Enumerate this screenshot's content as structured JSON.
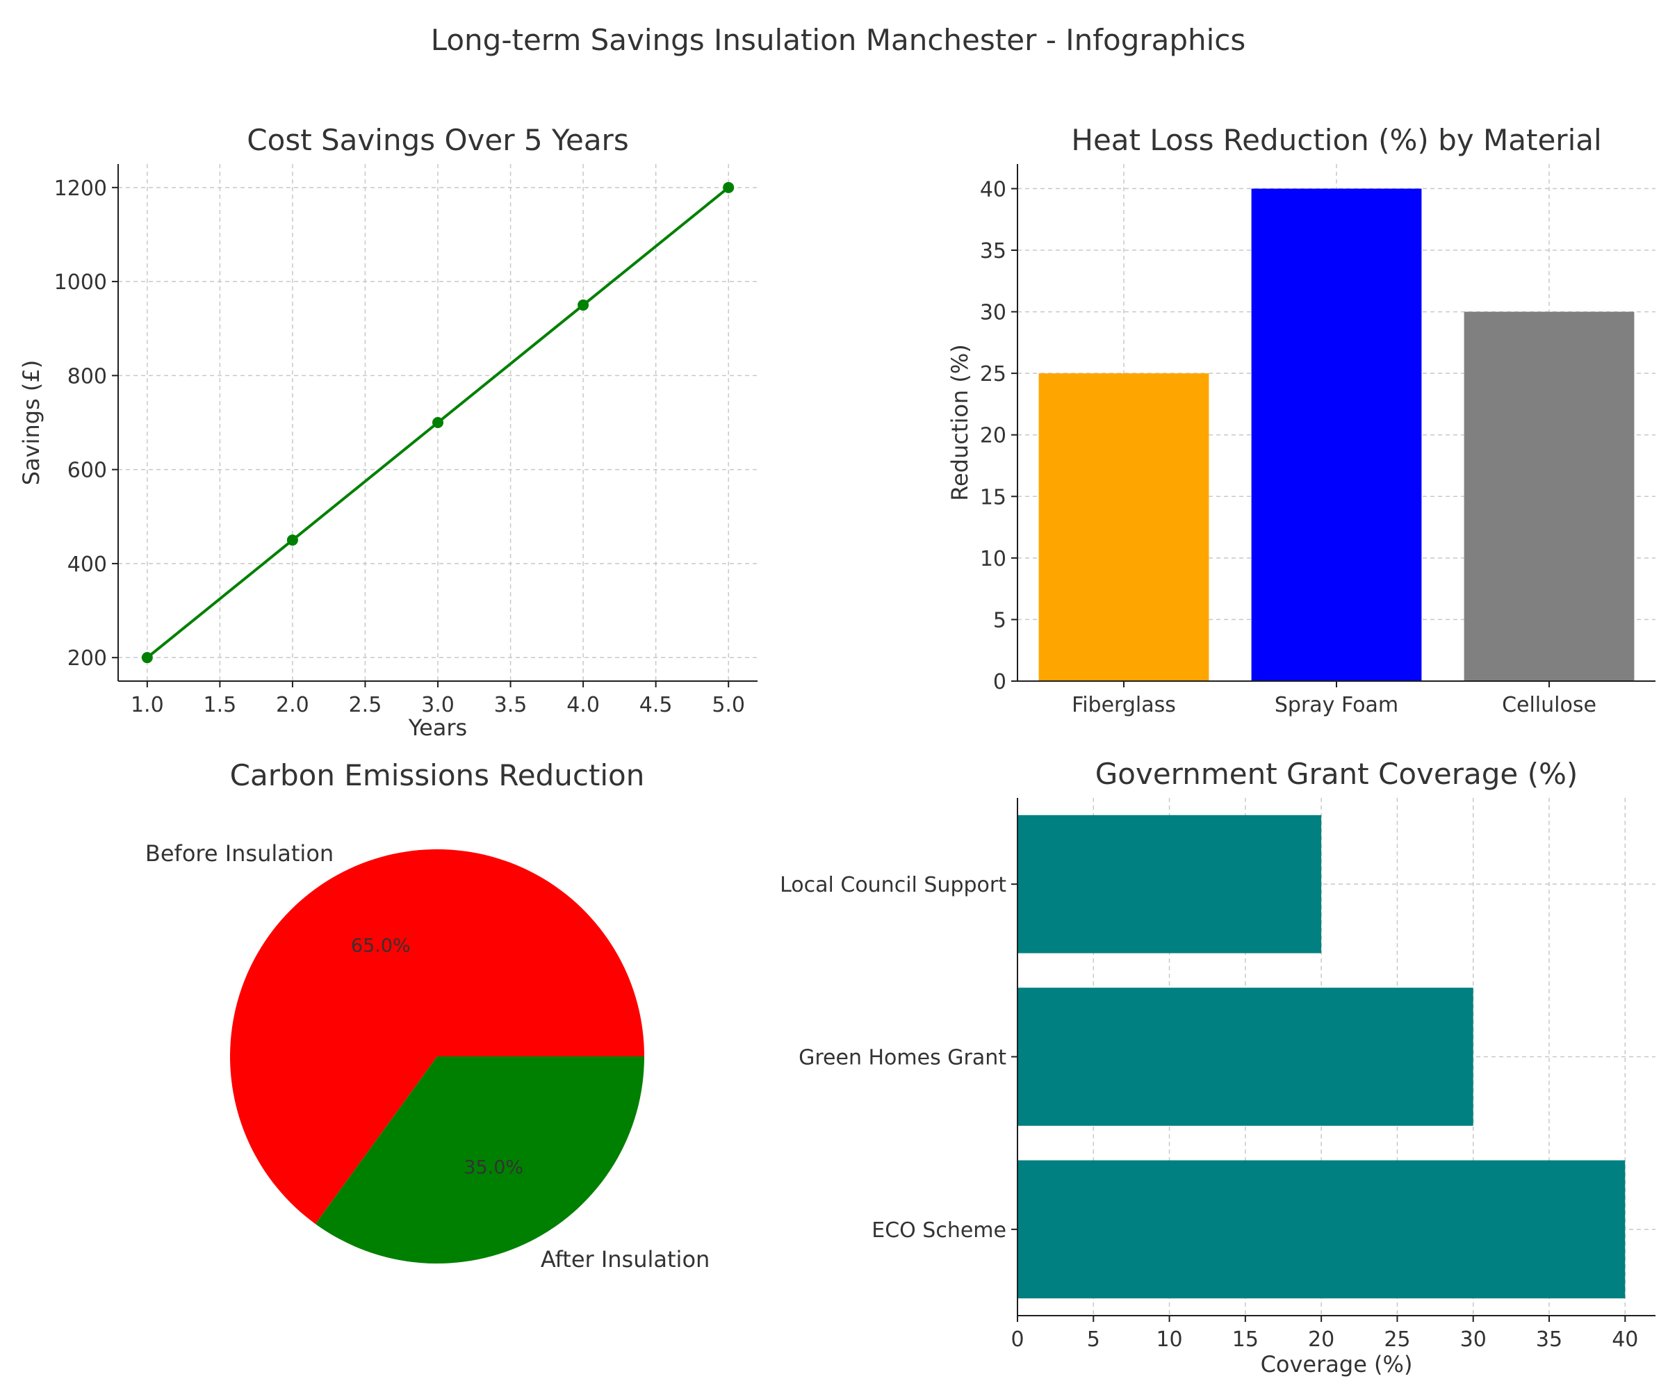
{
  "suptitle": "Long-term Savings Insulation Manchester - Infographics",
  "chart_data": [
    {
      "type": "line",
      "title": "Cost Savings Over 5 Years",
      "xlabel": "Years",
      "ylabel": "Savings (£)",
      "x": [
        1,
        2,
        3,
        4,
        5
      ],
      "series": [
        {
          "values": [
            200,
            450,
            700,
            950,
            1200
          ],
          "color": "#008000"
        }
      ],
      "xlim": [
        0.8,
        5.2
      ],
      "ylim": [
        150,
        1250
      ],
      "xticks": [
        1.0,
        1.5,
        2.0,
        2.5,
        3.0,
        3.5,
        4.0,
        4.5,
        5.0
      ],
      "xtick_labels": [
        "1.0",
        "1.5",
        "2.0",
        "2.5",
        "3.0",
        "3.5",
        "4.0",
        "4.5",
        "5.0"
      ],
      "yticks": [
        200,
        400,
        600,
        800,
        1000,
        1200
      ],
      "ytick_labels": [
        "200",
        "400",
        "600",
        "800",
        "1000",
        "1200"
      ],
      "grid": true,
      "markers": true
    },
    {
      "type": "bar",
      "title": "Heat Loss Reduction (%) by Material",
      "xlabel": "",
      "ylabel": "Reduction (%)",
      "categories": [
        "Fiberglass",
        "Spray Foam",
        "Cellulose"
      ],
      "values": [
        25,
        40,
        30
      ],
      "colors": [
        "#FFA500",
        "#0000FF",
        "#808080"
      ],
      "ylim": [
        0,
        42
      ],
      "yticks": [
        0,
        5,
        10,
        15,
        20,
        25,
        30,
        35,
        40
      ],
      "ytick_labels": [
        "0",
        "5",
        "10",
        "15",
        "20",
        "25",
        "30",
        "35",
        "40"
      ],
      "grid": true
    },
    {
      "type": "pie",
      "title": "Carbon Emissions Reduction",
      "labels": [
        "Before Insulation",
        "After Insulation"
      ],
      "values": [
        65,
        35
      ],
      "pct_labels": [
        "65.0%",
        "35.0%"
      ],
      "colors": [
        "#FF0000",
        "#008000"
      ],
      "startangle": 0
    },
    {
      "type": "bar",
      "orientation": "horizontal",
      "title": "Government Grant Coverage (%)",
      "xlabel": "Coverage (%)",
      "ylabel": "",
      "categories": [
        "ECO Scheme",
        "Green Homes Grant",
        "Local Council Support"
      ],
      "values": [
        40,
        30,
        20
      ],
      "color": "#008080",
      "xlim": [
        0,
        42
      ],
      "xticks": [
        0,
        5,
        10,
        15,
        20,
        25,
        30,
        35,
        40
      ],
      "xtick_labels": [
        "0",
        "5",
        "10",
        "15",
        "20",
        "25",
        "30",
        "35",
        "40"
      ],
      "grid": true
    }
  ]
}
